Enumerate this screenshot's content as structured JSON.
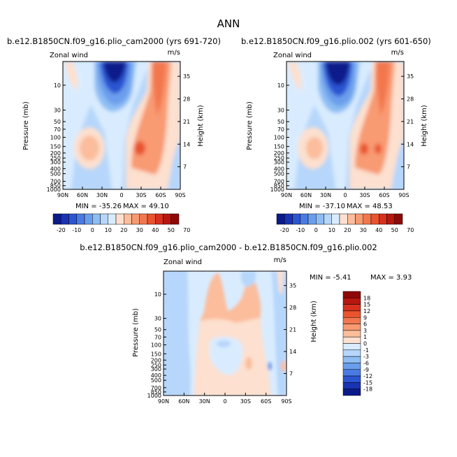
{
  "figure": {
    "title": "ANN",
    "colors": {
      "pos": [
        "#fde0cf",
        "#fbbd9c",
        "#f89a72",
        "#f3774e",
        "#e9542e",
        "#d7301f",
        "#b81710",
        "#8f0808"
      ],
      "neg": [
        "#d9ecff",
        "#b6d6fb",
        "#8ebdf3",
        "#6a9eec",
        "#4a7be3",
        "#2c55d2",
        "#1a33b3",
        "#0b1a8a"
      ]
    }
  },
  "chart_data": [
    {
      "type": "heatmap",
      "subtitle": "b.e12.B1850CN.f09_g16.plio_cam2000 (yrs 691-720)",
      "left_label": "Zonal wind",
      "units": "m/s",
      "ylabel": "Pressure (mb)",
      "ylabel_right": "Height (km)",
      "x_ticks": [
        "90N",
        "60N",
        "30N",
        "0",
        "30S",
        "60S",
        "90S"
      ],
      "y_ticks": [
        "10",
        "30",
        "50",
        "70",
        "100",
        "150",
        "200",
        "250",
        "300",
        "400",
        "500",
        "700",
        "850",
        "1000"
      ],
      "y_right_ticks": [
        "35",
        "28",
        "21",
        "14",
        "7"
      ],
      "min_label": "MIN = -35.26",
      "max_label": "MAX = 49.10",
      "min": -35.26,
      "max": 49.1,
      "colorbar_labels": [
        "-20",
        "-10",
        "0",
        "10",
        "20",
        "30",
        "40",
        "50",
        "70"
      ]
    },
    {
      "type": "heatmap",
      "subtitle": "b.e12.B1850CN.f09_g16.plio.002 (yrs 601-650)",
      "left_label": "Zonal wind",
      "units": "m/s",
      "ylabel": "Pressure (mb)",
      "ylabel_right": "Height (km)",
      "x_ticks": [
        "90N",
        "60N",
        "30N",
        "0",
        "30S",
        "60S",
        "90S"
      ],
      "y_ticks": [
        "10",
        "30",
        "50",
        "70",
        "100",
        "150",
        "200",
        "250",
        "300",
        "400",
        "500",
        "700",
        "850",
        "1000"
      ],
      "y_right_ticks": [
        "35",
        "28",
        "21",
        "14",
        "7"
      ],
      "min_label": "MIN = -37.10",
      "max_label": "MAX = 48.53",
      "min": -37.1,
      "max": 48.53,
      "colorbar_labels": [
        "-20",
        "-10",
        "0",
        "10",
        "20",
        "30",
        "40",
        "50",
        "70"
      ]
    },
    {
      "type": "heatmap",
      "subtitle": "b.e12.B1850CN.f09_g16.plio_cam2000 - b.e12.B1850CN.f09_g16.plio.002",
      "left_label": "Zonal wind",
      "units": "m/s",
      "ylabel": "Pressure (mb)",
      "ylabel_right": "Height (km)",
      "x_ticks": [
        "90N",
        "60N",
        "30N",
        "0",
        "30S",
        "60S",
        "90S"
      ],
      "y_ticks": [
        "10",
        "30",
        "50",
        "70",
        "100",
        "150",
        "200",
        "250",
        "300",
        "400",
        "500",
        "700",
        "850",
        "1000"
      ],
      "y_right_ticks": [
        "35",
        "28",
        "21",
        "14",
        "7"
      ],
      "min_label": "MIN = -5.41",
      "max_label": "MAX = 3.93",
      "min": -5.41,
      "max": 3.93,
      "colorbar_labels": [
        "18",
        "15",
        "12",
        "9",
        "6",
        "3",
        "1",
        "0",
        "-1",
        "-3",
        "-6",
        "-9",
        "-12",
        "-15",
        "-18"
      ]
    }
  ]
}
